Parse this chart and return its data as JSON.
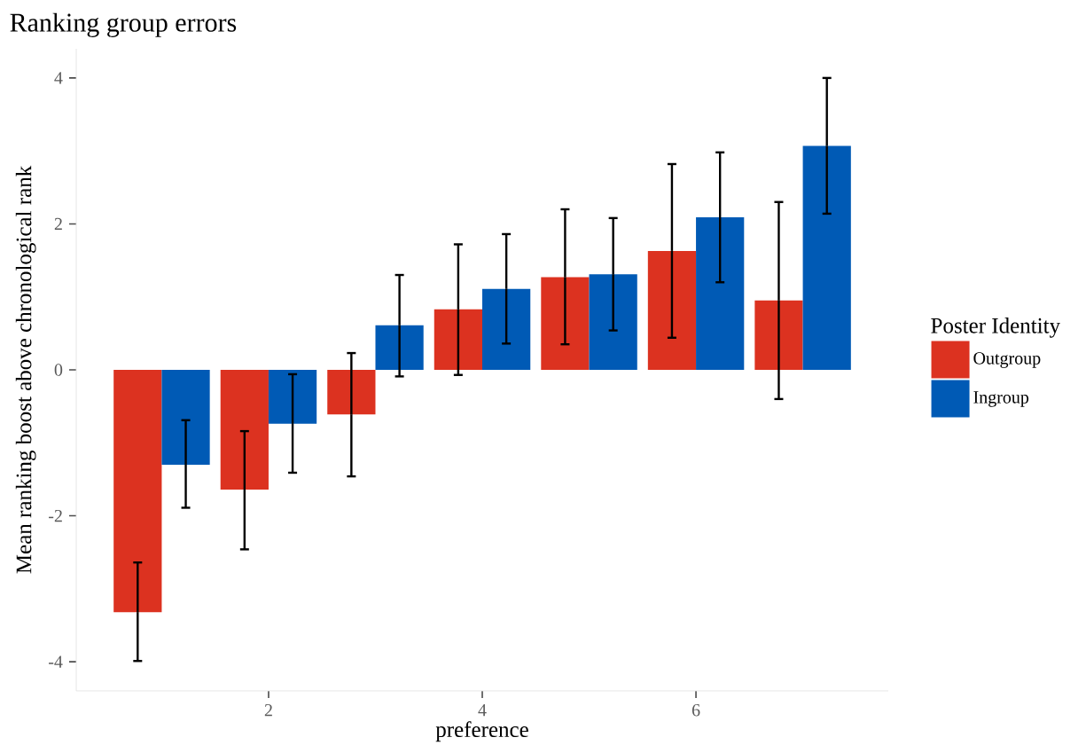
{
  "chart_data": {
    "type": "bar",
    "title": "Ranking group errors",
    "xlabel": "preference",
    "ylabel": "Mean ranking boost above chronological rank",
    "legend_title": "Poster Identity",
    "legend": "right",
    "grid": false,
    "x": [
      1,
      2,
      3,
      4,
      5,
      6,
      7
    ],
    "xlim": [
      0.2,
      7.8
    ],
    "xticks": [
      2,
      4,
      6
    ],
    "ylim": [
      -4.4,
      4.4
    ],
    "yticks": [
      -4,
      -2,
      0,
      2,
      4
    ],
    "series": [
      {
        "name": "Outgroup",
        "color": "#dc3220",
        "values": [
          -3.32,
          -1.64,
          -0.61,
          0.83,
          1.27,
          1.63,
          0.95
        ],
        "errors": [
          [
            -3.99,
            -2.64
          ],
          [
            -2.46,
            -0.84
          ],
          [
            -1.46,
            0.23
          ],
          [
            -0.07,
            1.72
          ],
          [
            0.35,
            2.2
          ],
          [
            0.44,
            2.82
          ],
          [
            -0.4,
            2.3
          ]
        ]
      },
      {
        "name": "Ingroup",
        "color": "#005ab5",
        "values": [
          -1.3,
          -0.74,
          0.61,
          1.11,
          1.31,
          2.09,
          3.07
        ],
        "errors": [
          [
            -1.89,
            -0.69
          ],
          [
            -1.41,
            -0.06
          ],
          [
            -0.09,
            1.3
          ],
          [
            0.36,
            1.86
          ],
          [
            0.54,
            2.08
          ],
          [
            1.2,
            2.98
          ],
          [
            2.14,
            4.0
          ]
        ]
      }
    ]
  }
}
